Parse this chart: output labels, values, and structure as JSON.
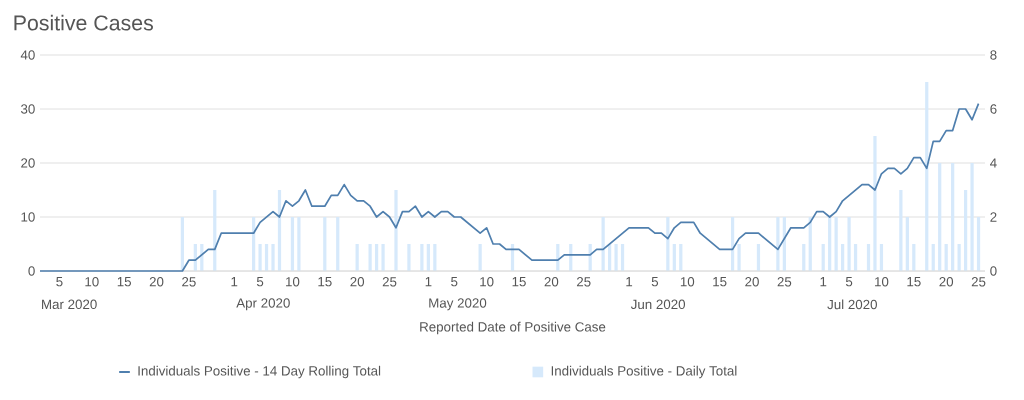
{
  "chart_data": {
    "type": "line",
    "title": "Positive Cases",
    "xlabel": "Reported Date of Positive Case",
    "xlim": [
      "2020-03-02",
      "2020-07-26"
    ],
    "xticks": [
      {
        "value": "2020-03-05",
        "label": "5"
      },
      {
        "value": "2020-03-10",
        "label": "10"
      },
      {
        "value": "2020-03-15",
        "label": "15"
      },
      {
        "value": "2020-03-20",
        "label": "20"
      },
      {
        "value": "2020-03-25",
        "label": "25"
      },
      {
        "value": "2020-04-01",
        "label": "1"
      },
      {
        "value": "2020-04-05",
        "label": "5"
      },
      {
        "value": "2020-04-10",
        "label": "10"
      },
      {
        "value": "2020-04-15",
        "label": "15"
      },
      {
        "value": "2020-04-20",
        "label": "20"
      },
      {
        "value": "2020-04-25",
        "label": "25"
      },
      {
        "value": "2020-05-01",
        "label": "1"
      },
      {
        "value": "2020-05-05",
        "label": "5"
      },
      {
        "value": "2020-05-10",
        "label": "10"
      },
      {
        "value": "2020-05-15",
        "label": "15"
      },
      {
        "value": "2020-05-20",
        "label": "20"
      },
      {
        "value": "2020-05-25",
        "label": "25"
      },
      {
        "value": "2020-06-01",
        "label": "1"
      },
      {
        "value": "2020-06-05",
        "label": "5"
      },
      {
        "value": "2020-06-10",
        "label": "10"
      },
      {
        "value": "2020-06-15",
        "label": "15"
      },
      {
        "value": "2020-06-20",
        "label": "20"
      },
      {
        "value": "2020-06-25",
        "label": "25"
      },
      {
        "value": "2020-07-01",
        "label": "1"
      },
      {
        "value": "2020-07-05",
        "label": "5"
      },
      {
        "value": "2020-07-10",
        "label": "10"
      },
      {
        "value": "2020-07-15",
        "label": "15"
      },
      {
        "value": "2020-07-20",
        "label": "20"
      },
      {
        "value": "2020-07-25",
        "label": "25"
      }
    ],
    "ylim": [
      0,
      40
    ],
    "yticks": [
      0,
      10,
      20,
      30,
      40
    ],
    "y2lim": [
      0,
      8
    ],
    "y2ticks": [
      0,
      2,
      4,
      6,
      8
    ],
    "grid": "y",
    "legend": "bottom",
    "marker": "none",
    "annotations": [
      "Mar 2020",
      "Apr 2020",
      "May 2020",
      "Jun 2020",
      "Jul 2020"
    ],
    "series": [
      {
        "name": "Individuals Positive - 14 Day Rolling Total",
        "color": "#4f7fae",
        "line_style": "solid",
        "x": [
          "2020-03-02",
          "2020-03-24",
          "2020-03-25",
          "2020-03-26",
          "2020-03-27",
          "2020-03-28",
          "2020-03-29",
          "2020-03-30",
          "2020-04-04",
          "2020-04-05",
          "2020-04-06",
          "2020-04-07",
          "2020-04-08",
          "2020-04-09",
          "2020-04-10",
          "2020-04-11",
          "2020-04-12",
          "2020-04-13",
          "2020-04-15",
          "2020-04-16",
          "2020-04-17",
          "2020-04-18",
          "2020-04-19",
          "2020-04-20",
          "2020-04-21",
          "2020-04-22",
          "2020-04-23",
          "2020-04-24",
          "2020-04-25",
          "2020-04-26",
          "2020-04-27",
          "2020-04-28",
          "2020-04-29",
          "2020-04-30",
          "2020-05-01",
          "2020-05-02",
          "2020-05-03",
          "2020-05-04",
          "2020-05-05",
          "2020-05-06",
          "2020-05-07",
          "2020-05-08",
          "2020-05-09",
          "2020-05-10",
          "2020-05-11",
          "2020-05-12",
          "2020-05-13",
          "2020-05-15",
          "2020-05-16",
          "2020-05-17",
          "2020-05-21",
          "2020-05-22",
          "2020-05-26",
          "2020-05-27",
          "2020-05-28",
          "2020-05-29",
          "2020-05-30",
          "2020-05-31",
          "2020-06-01",
          "2020-06-04",
          "2020-06-05",
          "2020-06-06",
          "2020-06-07",
          "2020-06-08",
          "2020-06-09",
          "2020-06-11",
          "2020-06-12",
          "2020-06-13",
          "2020-06-14",
          "2020-06-15",
          "2020-06-17",
          "2020-06-18",
          "2020-06-19",
          "2020-06-21",
          "2020-06-22",
          "2020-06-23",
          "2020-06-24",
          "2020-06-25",
          "2020-06-26",
          "2020-06-28",
          "2020-06-29",
          "2020-06-30",
          "2020-07-01",
          "2020-07-02",
          "2020-07-03",
          "2020-07-04",
          "2020-07-05",
          "2020-07-06",
          "2020-07-07",
          "2020-07-08",
          "2020-07-09",
          "2020-07-10",
          "2020-07-11",
          "2020-07-12",
          "2020-07-13",
          "2020-07-14",
          "2020-07-15",
          "2020-07-16",
          "2020-07-17",
          "2020-07-18",
          "2020-07-19",
          "2020-07-20",
          "2020-07-21",
          "2020-07-22",
          "2020-07-23",
          "2020-07-24",
          "2020-07-25"
        ],
        "values": [
          0,
          0,
          2,
          2,
          3,
          4,
          4,
          7,
          7,
          9,
          10,
          11,
          10,
          13,
          12,
          13,
          15,
          12,
          12,
          14,
          14,
          16,
          14,
          13,
          13,
          12,
          10,
          11,
          10,
          8,
          11,
          11,
          12,
          10,
          11,
          10,
          11,
          11,
          10,
          10,
          9,
          8,
          7,
          8,
          5,
          5,
          4,
          4,
          3,
          2,
          2,
          3,
          3,
          4,
          4,
          5,
          6,
          7,
          8,
          8,
          7,
          7,
          6,
          8,
          9,
          9,
          7,
          6,
          5,
          4,
          4,
          6,
          7,
          7,
          6,
          5,
          4,
          6,
          8,
          8,
          9,
          11,
          11,
          10,
          11,
          13,
          14,
          15,
          16,
          16,
          15,
          18,
          19,
          19,
          18,
          19,
          21,
          21,
          19,
          24,
          24,
          26,
          26,
          30,
          30,
          28,
          31
        ]
      },
      {
        "name": "Individuals Positive - Daily Total",
        "type": "bar",
        "axis": "y2",
        "color": "#d6e9fb",
        "x": [
          "2020-03-24",
          "2020-03-26",
          "2020-03-27",
          "2020-03-29",
          "2020-04-04",
          "2020-04-05",
          "2020-04-06",
          "2020-04-07",
          "2020-04-08",
          "2020-04-10",
          "2020-04-11",
          "2020-04-15",
          "2020-04-17",
          "2020-04-20",
          "2020-04-22",
          "2020-04-23",
          "2020-04-24",
          "2020-04-26",
          "2020-04-28",
          "2020-04-30",
          "2020-05-01",
          "2020-05-02",
          "2020-05-09",
          "2020-05-14",
          "2020-05-21",
          "2020-05-23",
          "2020-05-26",
          "2020-05-28",
          "2020-05-29",
          "2020-05-30",
          "2020-05-31",
          "2020-06-07",
          "2020-06-08",
          "2020-06-09",
          "2020-06-17",
          "2020-06-18",
          "2020-06-21",
          "2020-06-24",
          "2020-06-25",
          "2020-06-28",
          "2020-06-29",
          "2020-07-01",
          "2020-07-02",
          "2020-07-03",
          "2020-07-04",
          "2020-07-05",
          "2020-07-06",
          "2020-07-08",
          "2020-07-09",
          "2020-07-10",
          "2020-07-13",
          "2020-07-14",
          "2020-07-15",
          "2020-07-17",
          "2020-07-18",
          "2020-07-19",
          "2020-07-20",
          "2020-07-21",
          "2020-07-22",
          "2020-07-23",
          "2020-07-24",
          "2020-07-25"
        ],
        "values": [
          2,
          1,
          1,
          3,
          2,
          1,
          1,
          1,
          3,
          2,
          2,
          2,
          2,
          1,
          1,
          1,
          1,
          3,
          1,
          1,
          1,
          1,
          1,
          1,
          1,
          1,
          1,
          2,
          1,
          1,
          1,
          2,
          1,
          1,
          2,
          1,
          1,
          2,
          2,
          1,
          2,
          1,
          2,
          2,
          1,
          2,
          1,
          1,
          5,
          1,
          3,
          2,
          1,
          7,
          1,
          4,
          1,
          4,
          1,
          3,
          4,
          2
        ]
      }
    ]
  }
}
